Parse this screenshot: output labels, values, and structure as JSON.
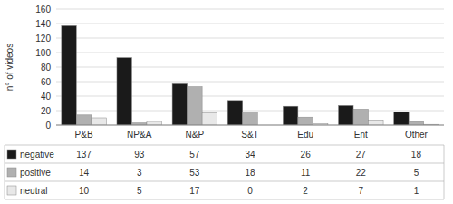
{
  "chart_data": {
    "type": "bar",
    "categories": [
      "P&B",
      "NP&A",
      "N&P",
      "S&T",
      "Edu",
      "Ent",
      "Other"
    ],
    "series": [
      {
        "name": "negative",
        "color": "#1a1a1a",
        "values": [
          137,
          93,
          57,
          34,
          26,
          27,
          18
        ]
      },
      {
        "name": "positive",
        "color": "#b0b0b0",
        "values": [
          14,
          3,
          53,
          18,
          11,
          22,
          5
        ]
      },
      {
        "name": "neutral",
        "color": "#e8e8e8",
        "values": [
          10,
          5,
          17,
          0,
          2,
          7,
          1
        ]
      }
    ],
    "ylabel": "n° of videos",
    "ylim": [
      0,
      160
    ],
    "yticks": [
      0,
      20,
      40,
      60,
      80,
      100,
      120,
      140,
      160
    ],
    "grid": true,
    "legend": "bottom",
    "data_labels": true
  }
}
